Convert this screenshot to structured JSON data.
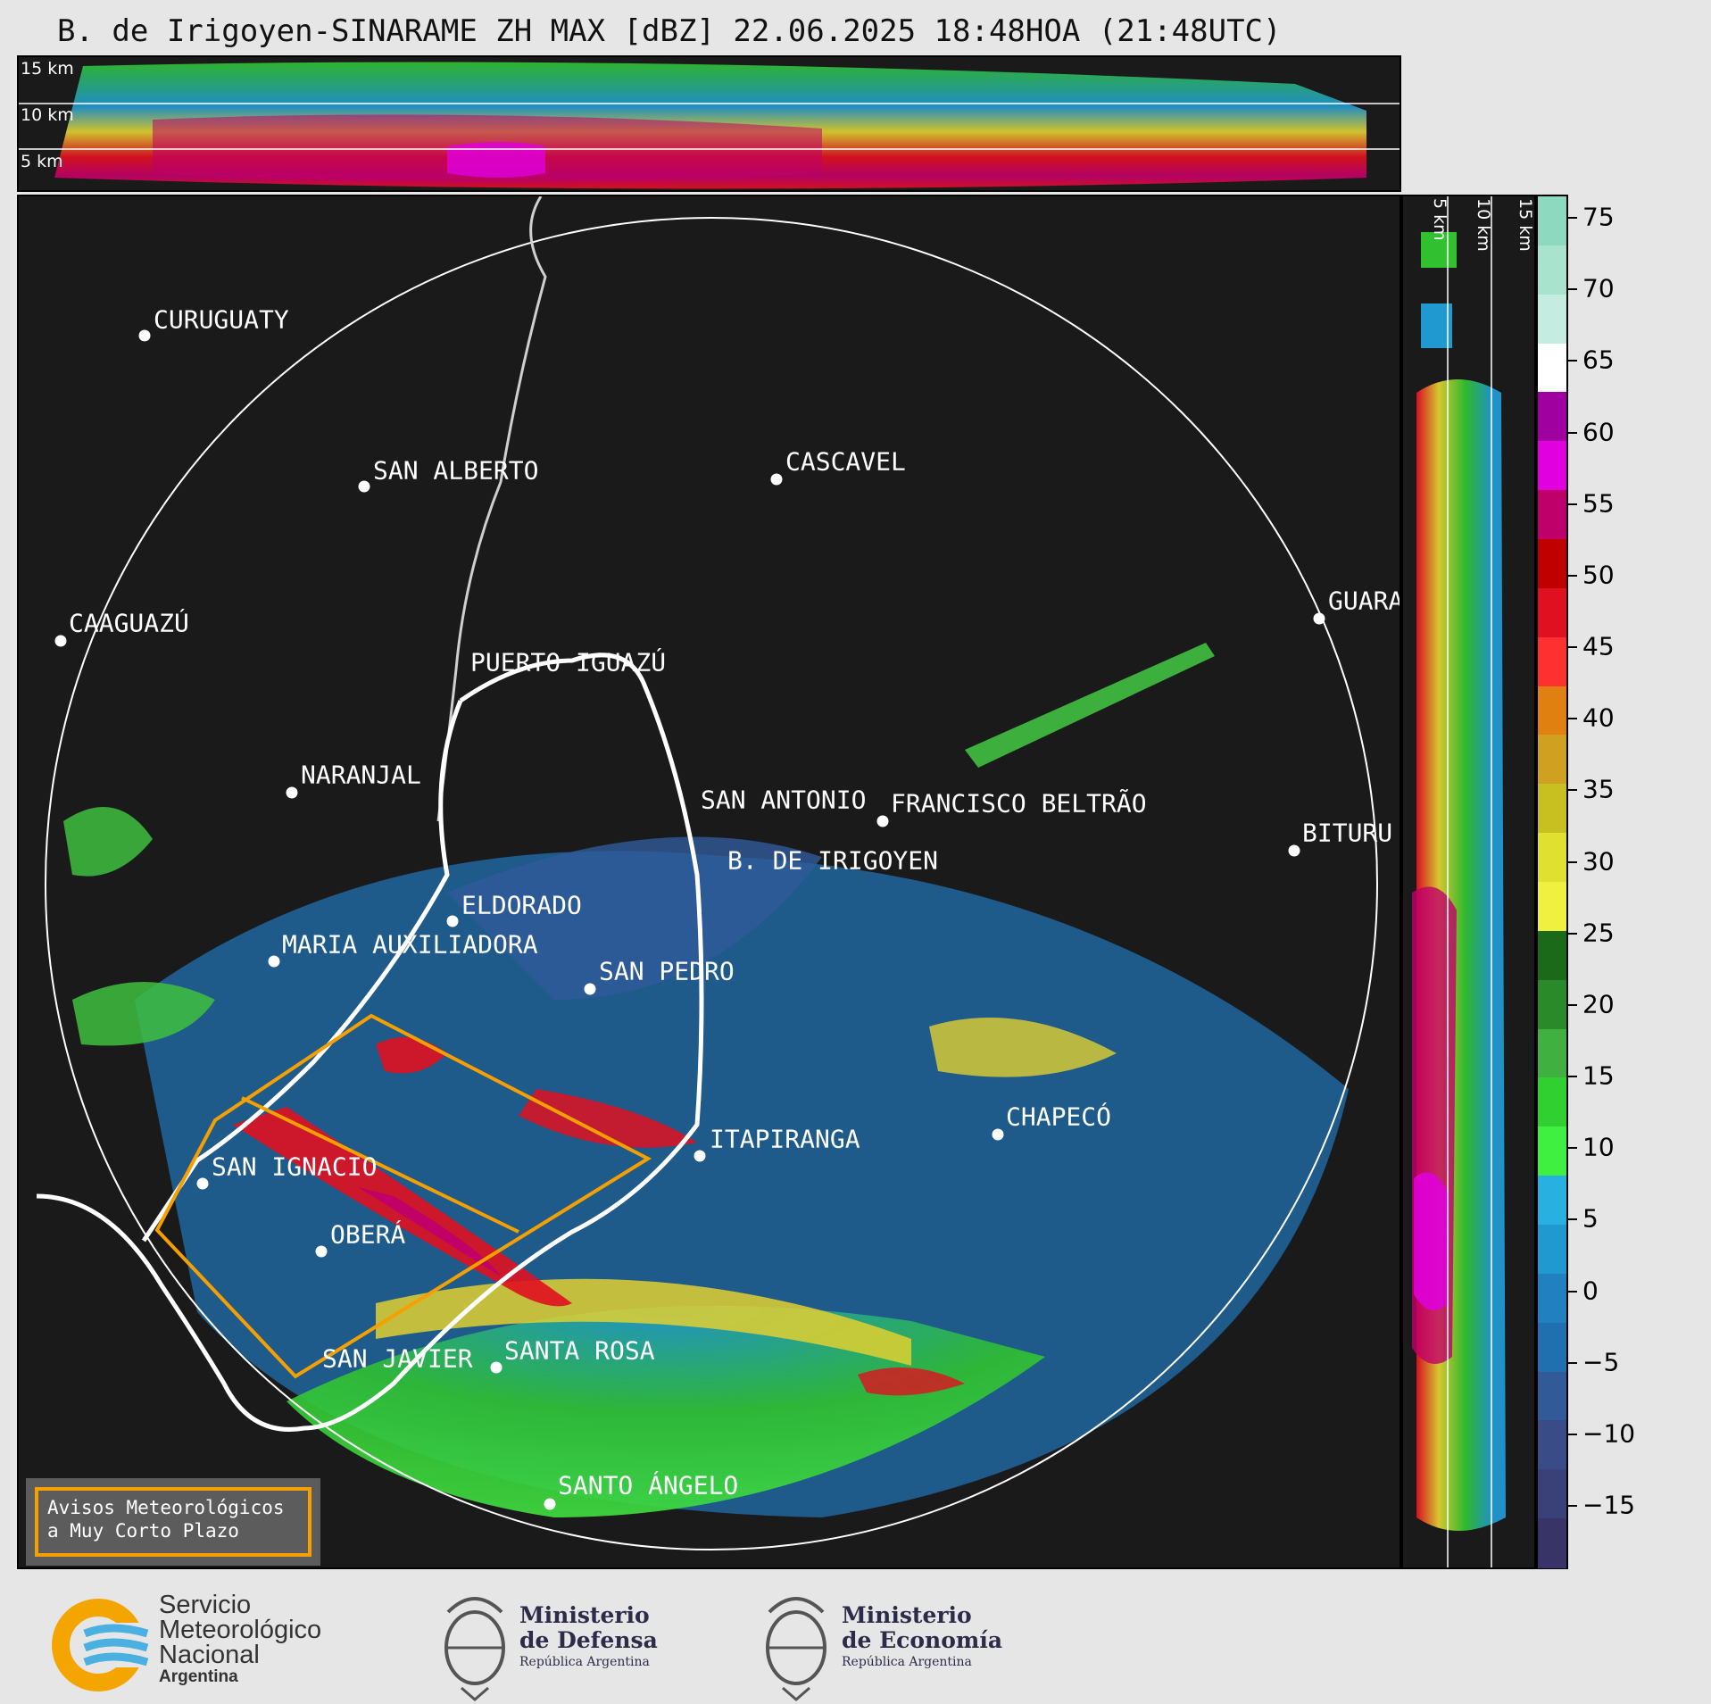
{
  "title": "B. de Irigoyen-SINARAME ZH MAX [dBZ] 22.06.2025 18:48HOA (21:48UTC)",
  "height_labels": [
    "15 km",
    "10 km",
    "5 km"
  ],
  "colorbar": {
    "ticks": [
      "75",
      "70",
      "65",
      "60",
      "55",
      "50",
      "45",
      "40",
      "35",
      "30",
      "25",
      "20",
      "15",
      "10",
      "5",
      "0",
      "−5",
      "−10",
      "−15"
    ],
    "colors": [
      "#8dd9c0",
      "#a8e3ce",
      "#c4ece0",
      "#ffffff",
      "#a000a0",
      "#e000e0",
      "#c0006a",
      "#c00000",
      "#e01020",
      "#ff3030",
      "#e08010",
      "#d0a020",
      "#c8c020",
      "#e0e030",
      "#f0f040",
      "#1a6a1a",
      "#2a8a2a",
      "#40b040",
      "#30d030",
      "#40f040",
      "#28b0e0",
      "#2098d0",
      "#2080c0",
      "#2070b0",
      "#305a98",
      "#3a4c88",
      "#3a4078",
      "#383468"
    ]
  },
  "cities": [
    {
      "name": "CURUGUATY",
      "label": "CURUGUATY"
    },
    {
      "name": "SAN ALBERTO",
      "label": "SAN ALBERTO"
    },
    {
      "name": "CASCAVEL",
      "label": "CASCAVEL"
    },
    {
      "name": "CAAGUAZU",
      "label": "CAAGUAZÚ"
    },
    {
      "name": "GUARA",
      "label": "GUARA"
    },
    {
      "name": "PUERTO IGUAZU",
      "label": "PUERTO IGUAZÚ"
    },
    {
      "name": "NARANJAL",
      "label": "NARANJAL"
    },
    {
      "name": "SAN ANTONIO",
      "label": "SAN ANTONIO"
    },
    {
      "name": "FRANCISCO BELTRAO",
      "label": "FRANCISCO BELTRÃO"
    },
    {
      "name": "BITURU",
      "label": "BITURU"
    },
    {
      "name": "B. DE IRIGOYEN",
      "label": "B. DE IRIGOYEN"
    },
    {
      "name": "ELDORADO",
      "label": "ELDORADO"
    },
    {
      "name": "MARIA AUXILIADORA",
      "label": "MARIA AUXILIADORA"
    },
    {
      "name": "SAN PEDRO",
      "label": "SAN PEDRO"
    },
    {
      "name": "CHAPECO",
      "label": "CHAPECÓ"
    },
    {
      "name": "ITAPIRANGA",
      "label": "ITAPIRANGA"
    },
    {
      "name": "SAN IGNACIO",
      "label": "SAN IGNACIO"
    },
    {
      "name": "OBERA",
      "label": "OBERÁ"
    },
    {
      "name": "SAN JAVIER",
      "label": "SAN JAVIER"
    },
    {
      "name": "SANTA ROSA",
      "label": "SANTA ROSA"
    },
    {
      "name": "SANTO ANGELO",
      "label": "SANTO ÁNGELO"
    }
  ],
  "avisos": {
    "line1": "Avisos Meteorológicos",
    "line2": "a Muy Corto Plazo"
  },
  "footer": {
    "smn": {
      "line1": "Servicio",
      "line2": "Meteorológico",
      "line3": "Nacional",
      "line4": "Argentina"
    },
    "defensa": {
      "line1": "Ministerio",
      "line2": "de Defensa",
      "line3": "República Argentina"
    },
    "economia": {
      "line1": "Ministerio",
      "line2": "de Economía",
      "line3": "República Argentina"
    }
  }
}
